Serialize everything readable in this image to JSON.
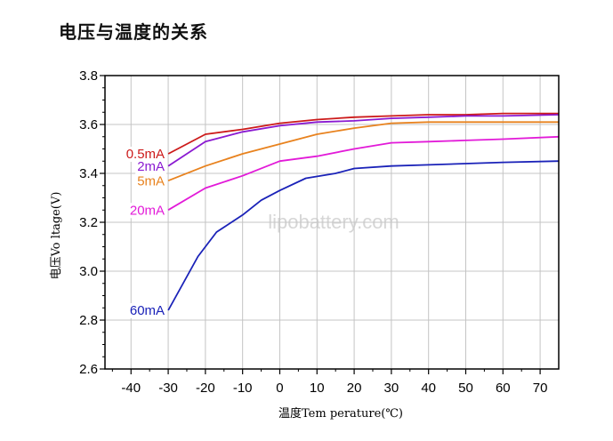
{
  "page": {
    "title": "电压与温度的关系"
  },
  "chart_data": {
    "type": "line",
    "title": "电压与温度的关系",
    "xlabel": "温度Tem perature(℃)",
    "ylabel": "电压Vo ltage(V)",
    "watermark": "lipobattery.com",
    "xlim": [
      -47,
      75
    ],
    "ylim": [
      2.6,
      3.8
    ],
    "xticks": [
      -40,
      -30,
      -20,
      -10,
      0,
      10,
      20,
      30,
      40,
      50,
      60,
      70
    ],
    "yticks": [
      2.6,
      2.8,
      3.0,
      3.2,
      3.4,
      3.6,
      3.8
    ],
    "ytick_labels": [
      "2.6",
      "2.8",
      "3.0",
      "3.2",
      "3.4",
      "3.6",
      "3.8"
    ],
    "grid": true,
    "series": [
      {
        "name": "0.5mA",
        "color": "#cc1a1a",
        "x": [
          -30,
          -20,
          -10,
          0,
          10,
          20,
          30,
          40,
          50,
          60,
          75
        ],
        "y": [
          3.48,
          3.56,
          3.58,
          3.605,
          3.62,
          3.63,
          3.635,
          3.64,
          3.64,
          3.645,
          3.645
        ]
      },
      {
        "name": "2mA",
        "color": "#8a1ad1",
        "x": [
          -30,
          -20,
          -10,
          0,
          10,
          20,
          30,
          40,
          50,
          60,
          75
        ],
        "y": [
          3.43,
          3.53,
          3.57,
          3.595,
          3.61,
          3.615,
          3.625,
          3.63,
          3.635,
          3.635,
          3.64
        ]
      },
      {
        "name": "5mA",
        "color": "#e8821e",
        "x": [
          -30,
          -20,
          -10,
          0,
          10,
          20,
          30,
          40,
          50,
          60,
          75
        ],
        "y": [
          3.37,
          3.43,
          3.48,
          3.52,
          3.56,
          3.585,
          3.605,
          3.61,
          3.61,
          3.61,
          3.61
        ]
      },
      {
        "name": "20mA",
        "color": "#e21ad8",
        "x": [
          -30,
          -20,
          -10,
          0,
          10,
          20,
          30,
          40,
          50,
          60,
          75
        ],
        "y": [
          3.25,
          3.34,
          3.39,
          3.45,
          3.47,
          3.5,
          3.525,
          3.53,
          3.535,
          3.54,
          3.55
        ]
      },
      {
        "name": "60mA",
        "color": "#1a22b8",
        "x": [
          -30,
          -22,
          -17,
          -10,
          -5,
          0,
          7,
          15,
          20,
          30,
          40,
          50,
          60,
          75
        ],
        "y": [
          2.84,
          3.06,
          3.16,
          3.23,
          3.29,
          3.33,
          3.38,
          3.4,
          3.42,
          3.43,
          3.435,
          3.44,
          3.445,
          3.45
        ]
      }
    ]
  }
}
